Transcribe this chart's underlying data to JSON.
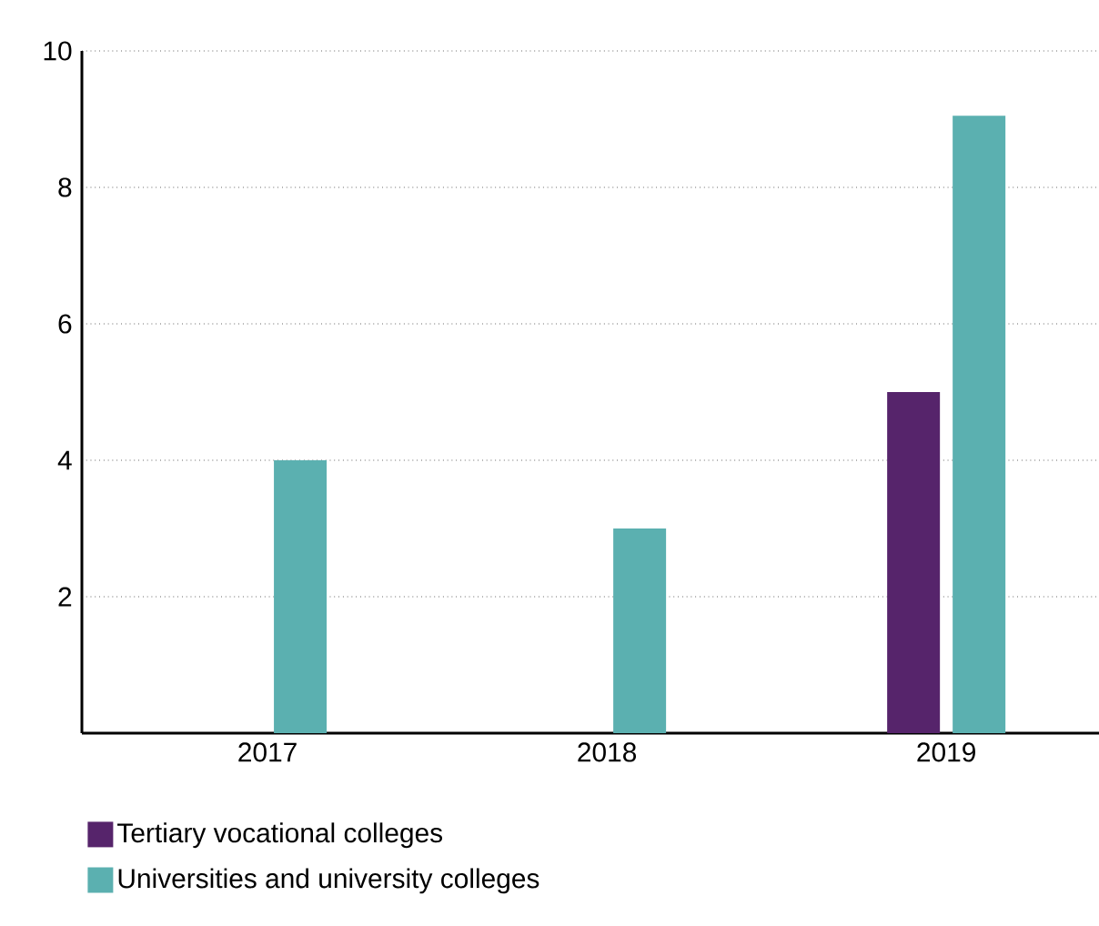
{
  "chart_data": {
    "type": "bar",
    "categories": [
      "2017",
      "2018",
      "2019"
    ],
    "series": [
      {
        "name": "Tertiary vocational colleges",
        "color": "#56246b",
        "values": [
          null,
          null,
          5
        ]
      },
      {
        "name": "Universities and university colleges",
        "color": "#5bb0b0",
        "values": [
          4,
          3,
          9.05
        ]
      }
    ],
    "ylim": [
      0,
      10
    ],
    "yticks": [
      2,
      4,
      6,
      8,
      10
    ],
    "grid": "y",
    "legend": "bottom"
  }
}
